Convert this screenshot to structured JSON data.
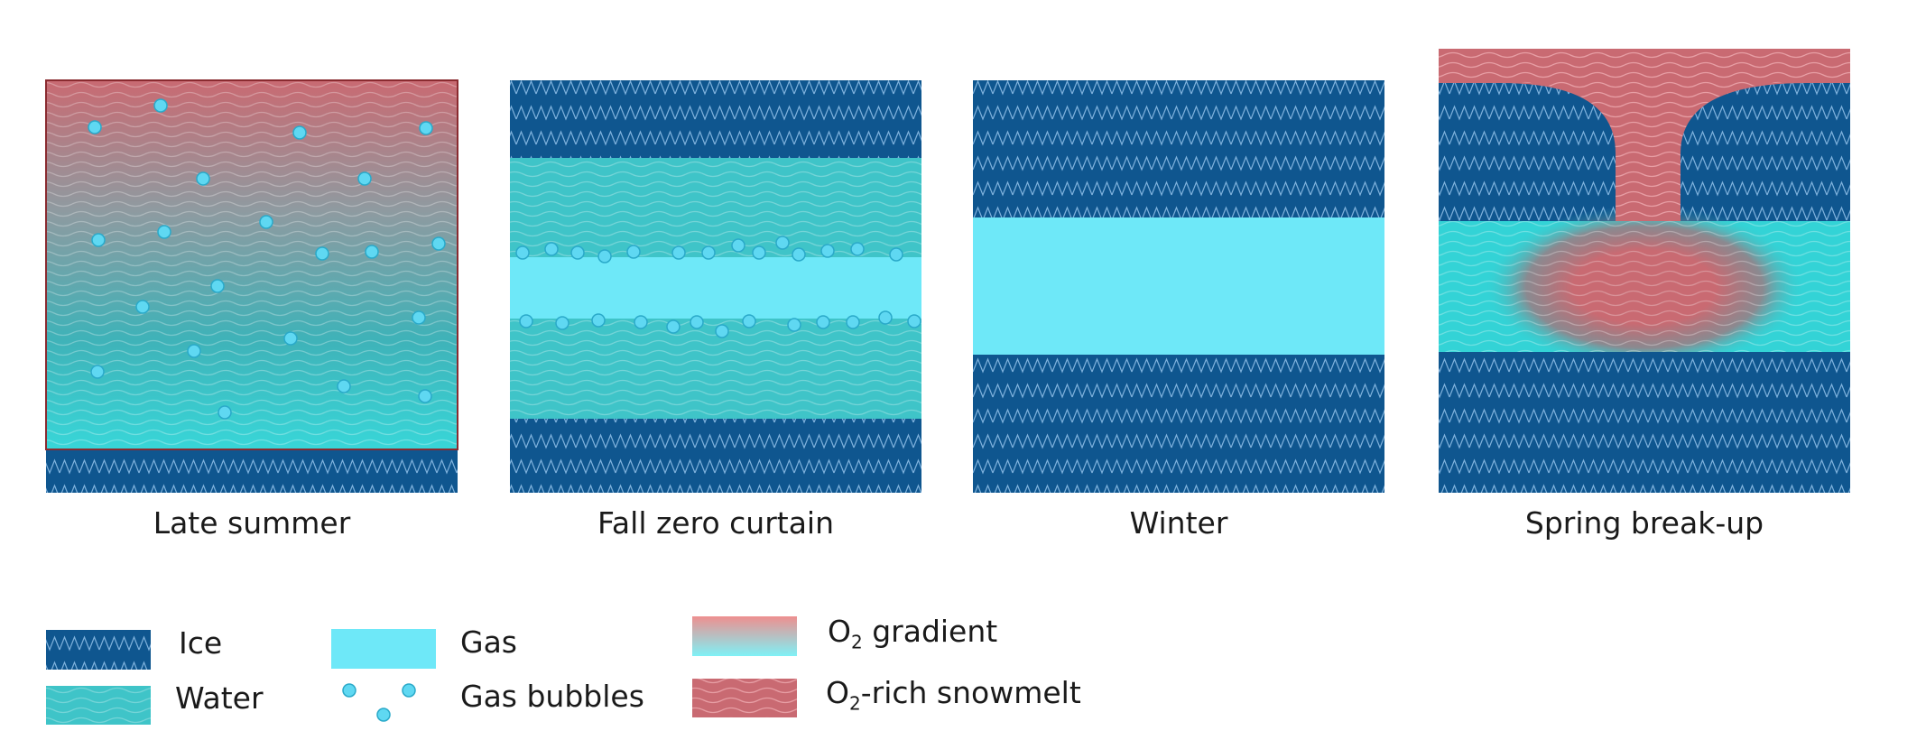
{
  "panels": [
    {
      "id": "late-summer",
      "label": "Late summer"
    },
    {
      "id": "fall-zero-curtain",
      "label": "Fall zero curtain"
    },
    {
      "id": "winter",
      "label": "Winter"
    },
    {
      "id": "spring-break-up",
      "label": "Spring break-up"
    }
  ],
  "legend": {
    "ice": "Ice",
    "water": "Water",
    "gas": "Gas",
    "gas_bubbles": "Gas bubbles",
    "o2_gradient_prefix": "O",
    "o2_gradient_sub": "2",
    "o2_gradient_suffix": " gradient",
    "o2_snowmelt_prefix": "O",
    "o2_snowmelt_sub": "2",
    "o2_snowmelt_suffix": "-rich snowmelt"
  },
  "colors": {
    "ice": "#0f568f",
    "water": "#3fc4c8",
    "gas": "#6ee8f8",
    "bubble": "#5fd8f2",
    "o2": "#c96a72",
    "o2_light": "#ef9a9a"
  }
}
